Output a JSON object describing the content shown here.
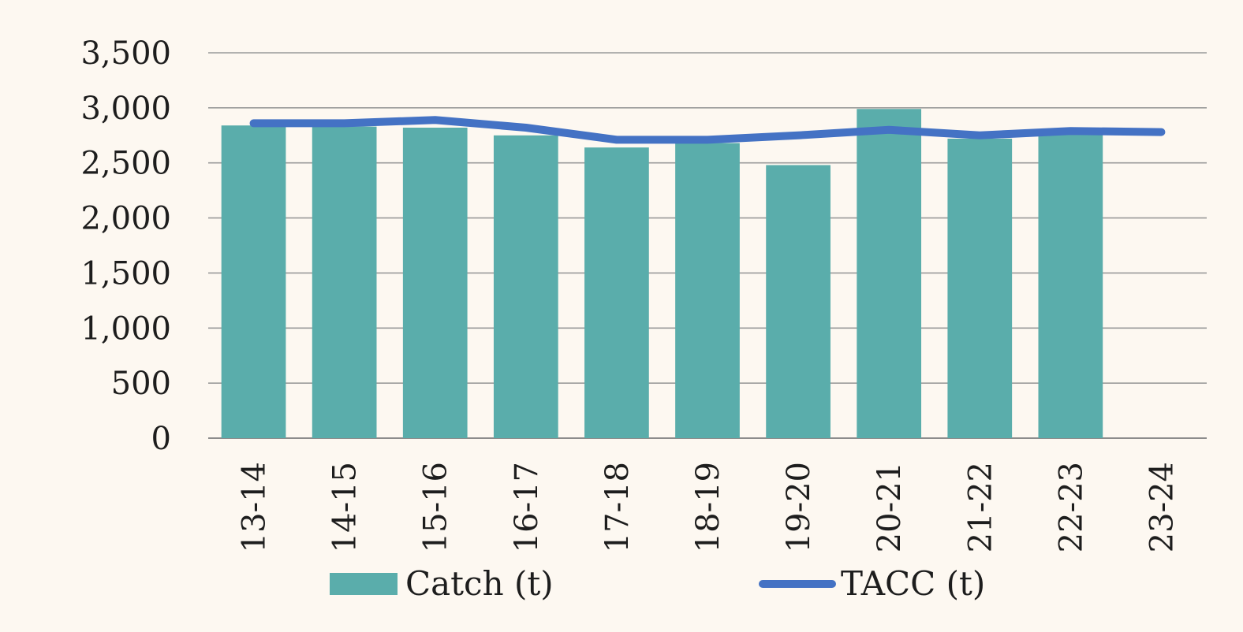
{
  "chart_data": {
    "type": "bar",
    "categories": [
      "13-14",
      "14-15",
      "15-16",
      "16-17",
      "17-18",
      "18-19",
      "19-20",
      "20-21",
      "21-22",
      "22-23",
      "23-24"
    ],
    "series": [
      {
        "name": "Catch (t)",
        "type": "bar",
        "color": "#5aadab",
        "values": [
          2840,
          2830,
          2820,
          2750,
          2640,
          2680,
          2480,
          2990,
          2720,
          2770,
          null
        ]
      },
      {
        "name": "TACC (t)",
        "type": "line",
        "color": "#4472c4",
        "values": [
          2860,
          2860,
          2890,
          2820,
          2710,
          2710,
          2750,
          2800,
          2750,
          2790,
          2780
        ]
      }
    ],
    "y_ticks": [
      "0",
      "500",
      "1,000",
      "1,500",
      "2,000",
      "2,500",
      "3,000",
      "3,500"
    ],
    "ylim": [
      0,
      3500
    ],
    "grid": true,
    "legend_position": "bottom"
  }
}
